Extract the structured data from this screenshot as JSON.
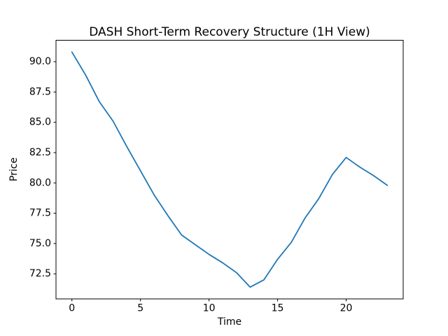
{
  "figure": {
    "background": "#ffffff",
    "spine_color": "#000000",
    "text_color": "#000000"
  },
  "chart_data": {
    "type": "line",
    "title": "DASH Short-Term Recovery Structure (1H View)",
    "xlabel": "Time",
    "ylabel": "Price",
    "grid": false,
    "legend_position": "none",
    "x": [
      0,
      1,
      2,
      3,
      4,
      5,
      6,
      7,
      8,
      9,
      10,
      11,
      12,
      13,
      14,
      15,
      16,
      17,
      18,
      19,
      20,
      21,
      22,
      23
    ],
    "series": [
      {
        "name": "Price",
        "color": "#1f77b4",
        "values": [
          90.8,
          88.9,
          86.7,
          85.1,
          83.0,
          81.0,
          79.0,
          77.3,
          75.7,
          74.9,
          74.1,
          73.4,
          72.6,
          71.4,
          72.0,
          73.7,
          75.1,
          77.1,
          78.7,
          80.7,
          82.1,
          81.3,
          80.6,
          79.8
        ]
      }
    ],
    "xlim": [
      -1.16,
      24.16
    ],
    "ylim": [
      70.43,
      91.77
    ],
    "x_ticks": [
      0,
      5,
      10,
      15,
      20
    ],
    "x_tick_labels": [
      "0",
      "5",
      "10",
      "15",
      "20"
    ],
    "y_ticks": [
      72.5,
      75.0,
      77.5,
      80.0,
      82.5,
      85.0,
      87.5,
      90.0
    ],
    "y_tick_labels": [
      "72.5",
      "75.0",
      "77.5",
      "80.0",
      "82.5",
      "85.0",
      "87.5",
      "90.0"
    ]
  }
}
